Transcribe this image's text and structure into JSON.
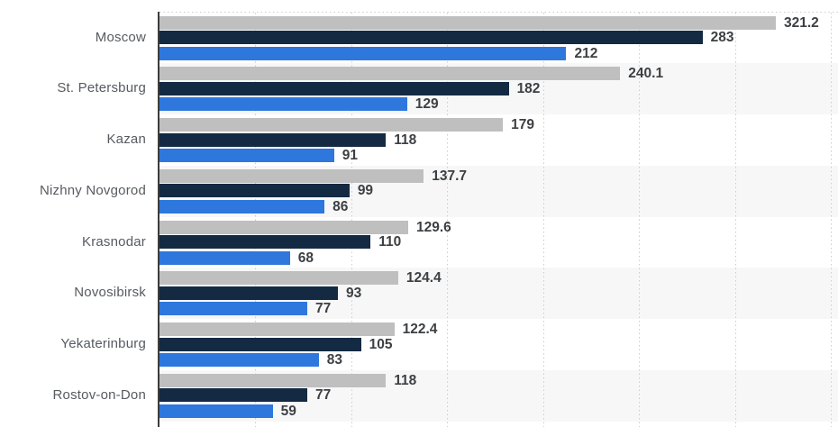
{
  "chart_data": {
    "type": "bar",
    "orientation": "horizontal",
    "categories": [
      "Moscow",
      "St. Petersburg",
      "Kazan",
      "Nizhny Novgorod",
      "Krasnodar",
      "Novosibirsk",
      "Yekaterinburg",
      "Rostov-on-Don"
    ],
    "series": [
      {
        "name": "gray",
        "color": "#bfbfbf",
        "values": [
          321.2,
          240.1,
          179,
          137.7,
          129.6,
          124.4,
          122.4,
          118
        ]
      },
      {
        "name": "dark-navy",
        "color": "#132a42",
        "values": [
          283,
          182,
          118,
          99,
          110,
          93,
          105,
          77
        ]
      },
      {
        "name": "blue",
        "color": "#2e77dd",
        "values": [
          212,
          129,
          91,
          86,
          68,
          77,
          83,
          59
        ]
      }
    ],
    "xlim": [
      0,
      354
    ],
    "gridline_step": 50,
    "grid": "vertical-dotted",
    "legend_position": "none",
    "value_labels": "outside-end",
    "axis_tick_labels_visible": false
  },
  "colors": {
    "background": "#ffffff",
    "row_band": "#f7f7f8",
    "gridline": "#c9cdd1",
    "axis_line": "#3c3c3c",
    "value_text": "#3d4043",
    "category_text": "#575b60"
  }
}
